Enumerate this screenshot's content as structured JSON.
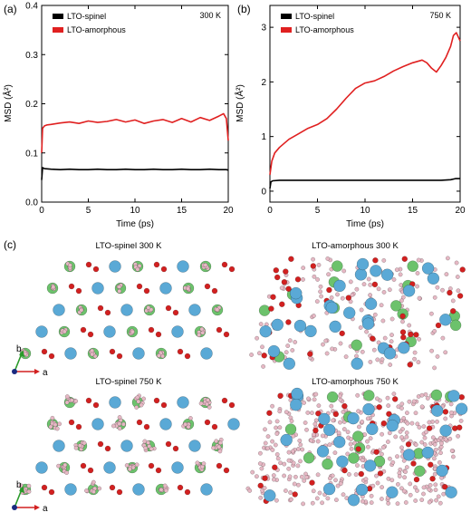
{
  "figure": {
    "panel_c_label": "(c)",
    "snapshots": [
      {
        "title": "LTO-spinel 300 K",
        "style": "ordered",
        "seed": 11
      },
      {
        "title": "LTO-amorphous 300 K",
        "style": "disordered",
        "seed": 23
      },
      {
        "title": "LTO-spinel 750 K",
        "style": "ordered-hot",
        "seed": 37
      },
      {
        "title": "LTO-amorphous 750 K",
        "style": "disordered-hot",
        "seed": 53
      }
    ],
    "axis_labels": {
      "a": "a",
      "b": "b"
    },
    "atom_colors": {
      "large": "#5aa9d6",
      "small_red": "#d22020",
      "pink": "#e6b8c4",
      "green": "#6cc26c"
    }
  },
  "chart_data": [
    {
      "panel": "(a)",
      "type": "line",
      "annotation": "300 K",
      "xlabel": "Time (ps)",
      "ylabel": "MSD (Å²)",
      "xlim": [
        0,
        20
      ],
      "ylim": [
        0,
        0.4
      ],
      "xticks": [
        0,
        5,
        10,
        15,
        20
      ],
      "yticks": [
        0.0,
        0.1,
        0.2,
        0.3,
        0.4
      ],
      "ytick_labels": [
        "0.0",
        "0.1",
        "0.2",
        "0.3",
        "0.4"
      ],
      "legend": "top-left",
      "series": [
        {
          "name": "LTO-spinel",
          "color": "#000000",
          "x": [
            0,
            0.1,
            0.3,
            1,
            2,
            3,
            4,
            5,
            6,
            7,
            8,
            9,
            10,
            11,
            12,
            13,
            14,
            15,
            16,
            17,
            18,
            19,
            19.8,
            20
          ],
          "y": [
            0.045,
            0.07,
            0.068,
            0.067,
            0.066,
            0.067,
            0.066,
            0.066,
            0.067,
            0.066,
            0.066,
            0.067,
            0.066,
            0.066,
            0.067,
            0.066,
            0.066,
            0.067,
            0.066,
            0.066,
            0.067,
            0.066,
            0.066,
            0.065
          ]
        },
        {
          "name": "LTO-amorphous",
          "color": "#e02020",
          "x": [
            0,
            0.1,
            0.3,
            0.6,
            1,
            2,
            3,
            4,
            5,
            6,
            7,
            8,
            9,
            10,
            11,
            12,
            13,
            14,
            15,
            16,
            17,
            18,
            19,
            19.5,
            19.8,
            20
          ],
          "y": [
            0.1,
            0.15,
            0.155,
            0.157,
            0.158,
            0.161,
            0.163,
            0.16,
            0.165,
            0.162,
            0.164,
            0.168,
            0.163,
            0.167,
            0.16,
            0.165,
            0.168,
            0.162,
            0.17,
            0.163,
            0.172,
            0.166,
            0.175,
            0.18,
            0.17,
            0.125
          ]
        }
      ]
    },
    {
      "panel": "(b)",
      "type": "line",
      "annotation": "750 K",
      "xlabel": "Time (ps)",
      "ylabel": "MSD (Å²)",
      "xlim": [
        0,
        20
      ],
      "ylim": [
        -0.2,
        3.4
      ],
      "xticks": [
        0,
        5,
        10,
        15,
        20
      ],
      "yticks": [
        0,
        1,
        2,
        3
      ],
      "ytick_labels": [
        "0",
        "1",
        "2",
        "3"
      ],
      "legend": "top-left",
      "series": [
        {
          "name": "LTO-spinel",
          "color": "#000000",
          "x": [
            0,
            0.1,
            0.3,
            1,
            3,
            5,
            8,
            10,
            12,
            15,
            18,
            19,
            19.5,
            20
          ],
          "y": [
            0.05,
            0.17,
            0.19,
            0.2,
            0.2,
            0.2,
            0.2,
            0.2,
            0.2,
            0.2,
            0.2,
            0.21,
            0.23,
            0.23
          ]
        },
        {
          "name": "LTO-amorphous",
          "color": "#e02020",
          "x": [
            0,
            0.2,
            0.5,
            1,
            2,
            3,
            4,
            5,
            6,
            7,
            8,
            9,
            10,
            11,
            12,
            13,
            14,
            15,
            16,
            16.5,
            17,
            17.5,
            18,
            18.5,
            19,
            19.3,
            19.6,
            20
          ],
          "y": [
            0.3,
            0.55,
            0.7,
            0.8,
            0.95,
            1.05,
            1.15,
            1.22,
            1.33,
            1.5,
            1.7,
            1.88,
            1.98,
            2.02,
            2.1,
            2.2,
            2.28,
            2.35,
            2.4,
            2.35,
            2.25,
            2.18,
            2.3,
            2.45,
            2.65,
            2.85,
            2.9,
            2.75
          ]
        }
      ]
    }
  ]
}
